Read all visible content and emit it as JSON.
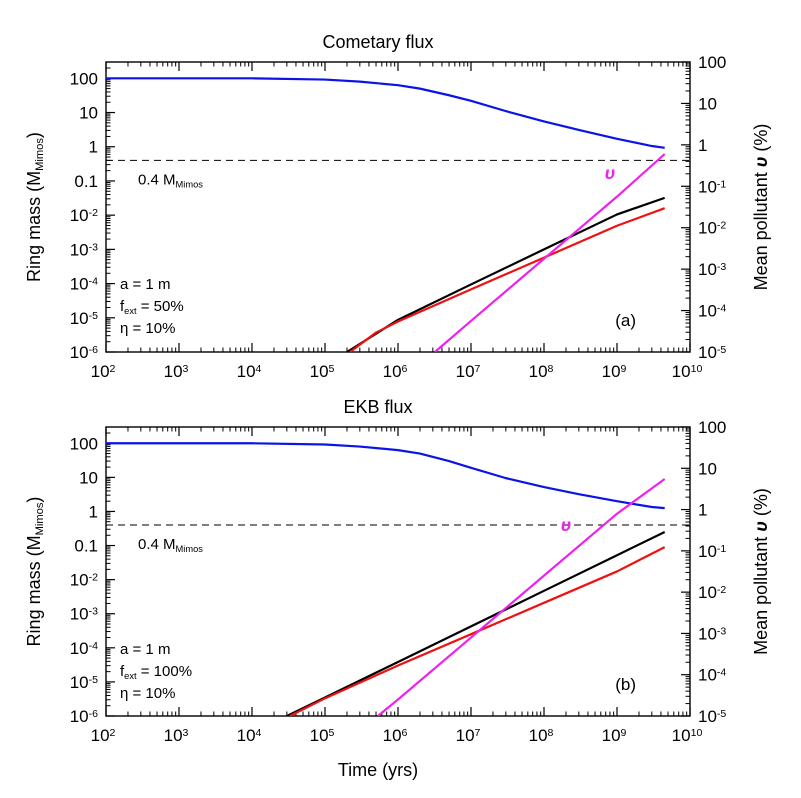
{
  "colors": {
    "blue": "#0a14e6",
    "black": "#000000",
    "red": "#ee1111",
    "magenta": "#ee22ee",
    "dashed": "#000000"
  },
  "chart_data": [
    {
      "type": "line",
      "title": "Cometary flux",
      "panel_label": "(a)",
      "xlabel": "",
      "ylabel_base": "Ring mass (M",
      "ylabel_sub": "Mimos",
      "ylabel_end": ")",
      "y2label_base": "Mean pollutant ",
      "y2label_sym": "υ",
      "y2label_end": " (%)",
      "xscale": "log",
      "yscale": "log",
      "xlim": [
        100,
        10000000000
      ],
      "ylim": [
        1e-06,
        300
      ],
      "y2lim": [
        1e-05,
        100
      ],
      "x_tick_exponents": [
        2,
        3,
        4,
        5,
        6,
        7,
        8,
        9,
        10
      ],
      "y_ticks": [
        {
          "v": 100,
          "mant": "100",
          "exp": ""
        },
        {
          "v": 10,
          "mant": "10",
          "exp": ""
        },
        {
          "v": 1,
          "mant": "1",
          "exp": ""
        },
        {
          "v": 0.1,
          "mant": "0.1",
          "exp": ""
        },
        {
          "v": 0.01,
          "mant": "10",
          "exp": "-2"
        },
        {
          "v": 0.001,
          "mant": "10",
          "exp": "-3"
        },
        {
          "v": 0.0001,
          "mant": "10",
          "exp": "-4"
        },
        {
          "v": 1e-05,
          "mant": "10",
          "exp": "-5"
        },
        {
          "v": 1e-06,
          "mant": "10",
          "exp": "-6"
        }
      ],
      "y2_ticks": [
        {
          "v": 100,
          "mant": "100",
          "exp": ""
        },
        {
          "v": 10,
          "mant": "10",
          "exp": ""
        },
        {
          "v": 1,
          "mant": "1",
          "exp": ""
        },
        {
          "v": 0.1,
          "mant": "10",
          "exp": "-1"
        },
        {
          "v": 0.01,
          "mant": "10",
          "exp": "-2"
        },
        {
          "v": 0.001,
          "mant": "10",
          "exp": "-3"
        },
        {
          "v": 0.0001,
          "mant": "10",
          "exp": "-4"
        },
        {
          "v": 1e-05,
          "mant": "10",
          "exp": "-5"
        }
      ],
      "reference_line": {
        "value": 0.4,
        "label_base": "0.4 M",
        "label_sub": "Mimos"
      },
      "params": [
        {
          "base": "a = 1 m",
          "sub": "",
          "rest": ""
        },
        {
          "base": "f",
          "sub": "ext",
          "rest": " = 50%"
        },
        {
          "base": "η = 10%",
          "sub": "",
          "rest": ""
        }
      ],
      "curve_label": "υ",
      "curve_label_at": [
        800000000,
        0.15
      ],
      "series": [
        {
          "name": "blue",
          "color_key": "blue",
          "axis": "left",
          "x": [
            100,
            1000,
            10000,
            100000,
            300000,
            1000000,
            2000000,
            5000000,
            10000000,
            30000000,
            100000000,
            300000000,
            1000000000,
            3000000000,
            4500000000
          ],
          "y": [
            100,
            100,
            100,
            92,
            80,
            63,
            50,
            32,
            22,
            11,
            5.5,
            3.1,
            1.7,
            1.05,
            0.93
          ]
        },
        {
          "name": "black",
          "color_key": "black",
          "axis": "left",
          "x": [
            200000,
            1000000,
            10000000,
            100000000,
            1000000000,
            4500000000
          ],
          "y": [
            1e-06,
            8.7e-06,
            9.44e-05,
            0.001,
            0.0105,
            0.032
          ]
        },
        {
          "name": "red",
          "color_key": "red",
          "axis": "left",
          "x": [
            220000,
            500000,
            1000000,
            10000000,
            100000000,
            1000000000,
            4500000000
          ],
          "y": [
            1e-06,
            3.7e-06,
            7.8e-06,
            6.76e-05,
            0.000575,
            0.0049,
            0.016
          ]
        },
        {
          "name": "magenta",
          "color_key": "magenta",
          "axis": "right",
          "x": [
            3200000,
            10000000,
            100000000,
            1000000000,
            4500000000
          ],
          "y": [
            1e-05,
            5.62e-05,
            0.00178,
            0.0562,
            0.6
          ]
        }
      ]
    },
    {
      "type": "line",
      "title": "EKB flux",
      "panel_label": "(b)",
      "xlabel": "Time (yrs)",
      "ylabel_base": "Ring mass (M",
      "ylabel_sub": "Mimos",
      "ylabel_end": ")",
      "y2label_base": "Mean pollutant ",
      "y2label_sym": "υ",
      "y2label_end": " (%)",
      "xscale": "log",
      "yscale": "log",
      "xlim": [
        100,
        10000000000
      ],
      "ylim": [
        1e-06,
        300
      ],
      "y2lim": [
        1e-05,
        100
      ],
      "x_tick_exponents": [
        2,
        3,
        4,
        5,
        6,
        7,
        8,
        9,
        10
      ],
      "y_ticks": [
        {
          "v": 100,
          "mant": "100",
          "exp": ""
        },
        {
          "v": 10,
          "mant": "10",
          "exp": ""
        },
        {
          "v": 1,
          "mant": "1",
          "exp": ""
        },
        {
          "v": 0.1,
          "mant": "0.1",
          "exp": ""
        },
        {
          "v": 0.01,
          "mant": "10",
          "exp": "-2"
        },
        {
          "v": 0.001,
          "mant": "10",
          "exp": "-3"
        },
        {
          "v": 0.0001,
          "mant": "10",
          "exp": "-4"
        },
        {
          "v": 1e-05,
          "mant": "10",
          "exp": "-5"
        },
        {
          "v": 1e-06,
          "mant": "10",
          "exp": "-6"
        }
      ],
      "y2_ticks": [
        {
          "v": 100,
          "mant": "100",
          "exp": ""
        },
        {
          "v": 10,
          "mant": "10",
          "exp": ""
        },
        {
          "v": 1,
          "mant": "1",
          "exp": ""
        },
        {
          "v": 0.1,
          "mant": "10",
          "exp": "-1"
        },
        {
          "v": 0.01,
          "mant": "10",
          "exp": "-2"
        },
        {
          "v": 0.001,
          "mant": "10",
          "exp": "-3"
        },
        {
          "v": 0.0001,
          "mant": "10",
          "exp": "-4"
        },
        {
          "v": 1e-05,
          "mant": "10",
          "exp": "-5"
        }
      ],
      "reference_line": {
        "value": 0.4,
        "label_base": "0.4 M",
        "label_sub": "Mimos"
      },
      "params": [
        {
          "base": "a = 1 m",
          "sub": "",
          "rest": ""
        },
        {
          "base": "f",
          "sub": "ext",
          "rest": " = 100%"
        },
        {
          "base": "η = 10%",
          "sub": "",
          "rest": ""
        }
      ],
      "curve_label": "υ",
      "curve_label_at": [
        200000000,
        0.3
      ],
      "series": [
        {
          "name": "blue",
          "color_key": "blue",
          "axis": "left",
          "x": [
            100,
            1000,
            10000,
            100000,
            300000,
            1000000,
            2000000,
            5000000,
            10000000,
            30000000,
            100000000,
            300000000,
            1000000000,
            3000000000,
            4500000000
          ],
          "y": [
            100,
            100,
            100,
            92,
            80,
            63,
            50,
            30,
            19,
            9.5,
            5.2,
            3.2,
            2.0,
            1.35,
            1.25
          ]
        },
        {
          "name": "black",
          "color_key": "black",
          "axis": "left",
          "x": [
            30000,
            100000,
            1000000,
            10000000,
            100000000,
            1000000000,
            4500000000
          ],
          "y": [
            1e-06,
            3.5e-06,
            3.85e-05,
            0.000425,
            0.0047,
            0.052,
            0.25
          ]
        },
        {
          "name": "red",
          "color_key": "red",
          "axis": "left",
          "x": [
            33000,
            100000,
            1000000,
            10000000,
            100000000,
            1000000000,
            4500000000
          ],
          "y": [
            1e-06,
            3.3e-06,
            3.02e-05,
            0.000251,
            0.00209,
            0.0174,
            0.09
          ]
        },
        {
          "name": "magenta",
          "color_key": "magenta",
          "axis": "right",
          "x": [
            530000,
            1000000,
            10000000,
            100000000,
            1000000000,
            4500000000
          ],
          "y": [
            1e-05,
            2.51e-05,
            0.000794,
            0.0251,
            0.794,
            5.5
          ]
        }
      ]
    }
  ]
}
